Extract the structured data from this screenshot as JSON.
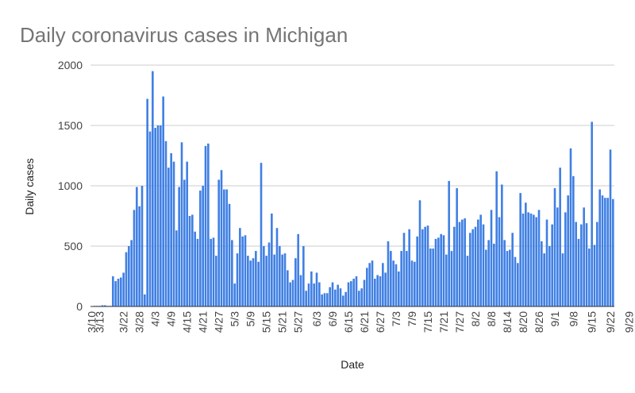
{
  "chart_data": {
    "type": "bar",
    "title": "Daily coronavirus cases in Michigan",
    "xlabel": "Date",
    "ylabel": "Daily cases",
    "ylim": [
      0,
      2000
    ],
    "yticks": [
      0,
      500,
      1000,
      1500,
      2000
    ],
    "grid": true,
    "legend": "none",
    "bar_color": "#3f7fe3",
    "start_date": "3/10",
    "x_tick_labels": [
      "3/10",
      "3/13",
      "3/22",
      "3/28",
      "4/3",
      "4/9",
      "4/15",
      "4/21",
      "4/27",
      "5/3",
      "5/9",
      "5/15",
      "5/21",
      "5/27",
      "6/3",
      "6/9",
      "6/15",
      "6/21",
      "6/27",
      "7/3",
      "7/9",
      "7/15",
      "7/21",
      "7/27",
      "8/2",
      "8/8",
      "8/14",
      "8/20",
      "8/26",
      "9/1",
      "9/8",
      "9/15",
      "9/22",
      "9/29"
    ],
    "values": [
      3,
      5,
      5,
      5,
      10,
      10,
      5,
      5,
      250,
      210,
      230,
      240,
      280,
      450,
      500,
      550,
      800,
      990,
      830,
      1000,
      100,
      1720,
      1450,
      1950,
      1480,
      1500,
      1500,
      1740,
      1370,
      1150,
      1270,
      1200,
      630,
      990,
      1360,
      1050,
      1200,
      750,
      760,
      620,
      560,
      960,
      1000,
      1330,
      1350,
      560,
      570,
      420,
      1050,
      1130,
      970,
      970,
      850,
      550,
      190,
      440,
      650,
      580,
      590,
      420,
      380,
      400,
      460,
      370,
      1190,
      500,
      420,
      530,
      770,
      430,
      650,
      500,
      430,
      440,
      300,
      200,
      220,
      400,
      600,
      260,
      500,
      130,
      190,
      290,
      190,
      280,
      200,
      100,
      110,
      110,
      160,
      200,
      140,
      180,
      150,
      90,
      120,
      200,
      210,
      230,
      250,
      130,
      150,
      220,
      320,
      360,
      380,
      230,
      260,
      250,
      360,
      280,
      540,
      460,
      380,
      350,
      290,
      460,
      610,
      460,
      640,
      380,
      370,
      580,
      880,
      640,
      660,
      670,
      480,
      480,
      560,
      570,
      600,
      590,
      430,
      1040,
      460,
      660,
      980,
      700,
      720,
      730,
      420,
      610,
      640,
      660,
      720,
      760,
      680,
      470,
      550,
      800,
      520,
      1120,
      740,
      1010,
      550,
      460,
      470,
      610,
      410,
      360,
      940,
      770,
      860,
      780,
      770,
      760,
      740,
      800,
      540,
      440,
      720,
      500,
      680,
      980,
      820,
      1150,
      440,
      780,
      920,
      1310,
      1080,
      700,
      560,
      680,
      820,
      690,
      480,
      1530,
      510,
      700,
      970,
      920,
      900,
      900,
      1300,
      890
    ]
  }
}
